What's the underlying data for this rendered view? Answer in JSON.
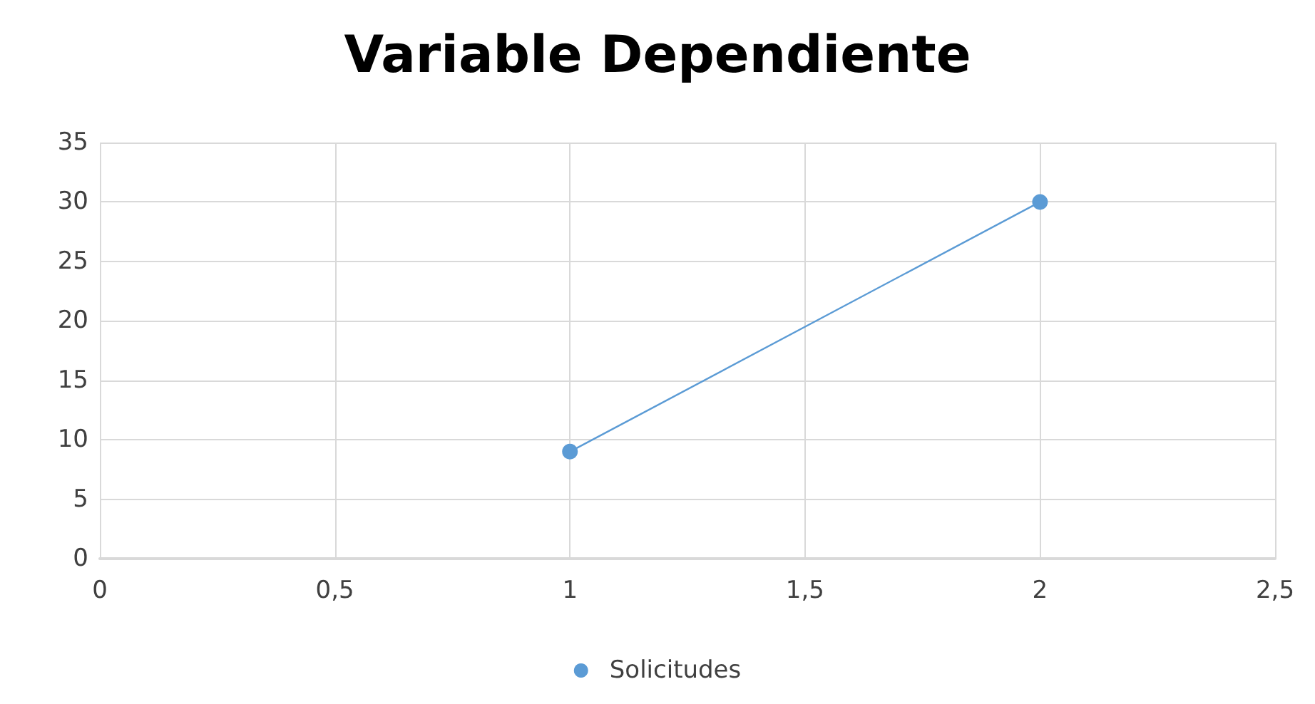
{
  "chart_data": {
    "type": "line",
    "title": "Variable Dependiente",
    "x": [
      1,
      2
    ],
    "series": [
      {
        "name": "Solicitudes",
        "color": "#5b9bd5",
        "values": [
          9,
          30
        ]
      }
    ],
    "xlim": [
      0,
      2.5
    ],
    "xticks": [
      0,
      {
        "value": 0.5,
        "label": "0,5"
      },
      1,
      {
        "value": 1.5,
        "label": "1,5"
      },
      2,
      {
        "value": 2.5,
        "label": "2,5"
      }
    ],
    "ylim": [
      0,
      35
    ],
    "yticks": [
      0,
      5,
      10,
      15,
      20,
      25,
      30,
      35
    ],
    "grid": true,
    "legend": "bottom",
    "marker": "circle",
    "line_style": "solid"
  }
}
